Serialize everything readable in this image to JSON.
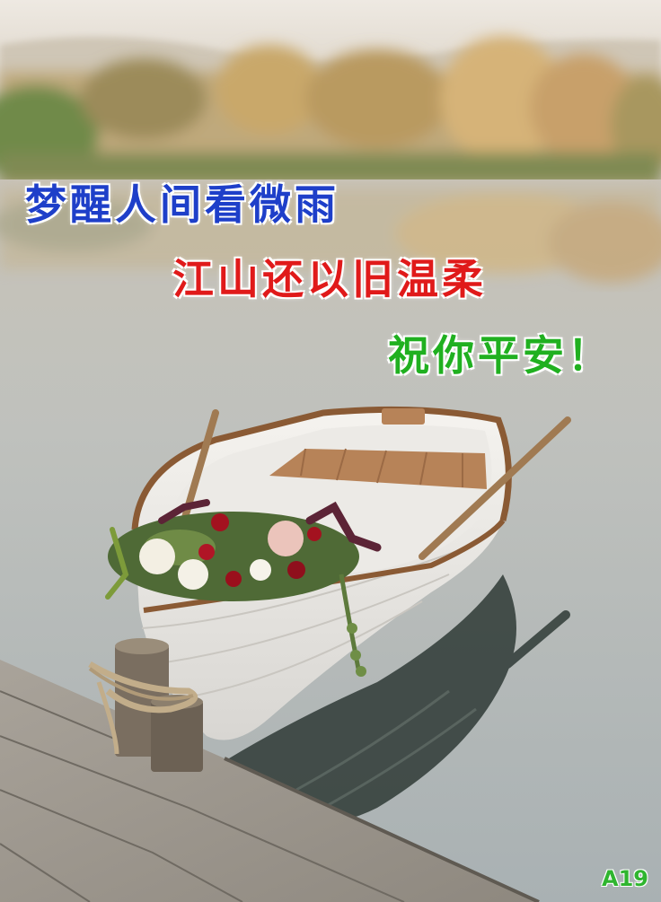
{
  "greeting": {
    "line1": "梦醒人间看微雨",
    "line2": "江山还以旧温柔",
    "line3": "祝你平安！"
  },
  "tag": "A19",
  "colors": {
    "line1": "#1e3fc9",
    "line2": "#e01a1a",
    "line3": "#20b020",
    "tag": "#2fb52f"
  }
}
